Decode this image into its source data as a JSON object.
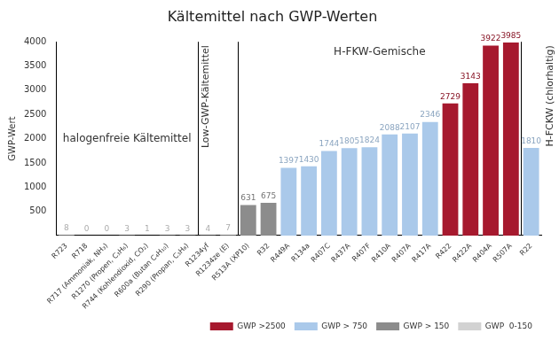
{
  "chart_data": {
    "type": "bar",
    "title": "Kältemittel nach GWP-Werten",
    "y_label": "GWP-Wert",
    "categories": [
      "R723",
      "R718",
      "R717 (Ammoniak, NH₃)",
      "R1270 (Propen, C₃H₆)",
      "R744 (Kohlendioxid, CO₂)",
      "R600a (Butan C₄H₁₀)",
      "R290 (Propan, C₃H₈)",
      "R1234yf",
      "R1234ze (E)",
      "R513A (XP10)",
      "R32",
      "R449A",
      "R134a",
      "R407C",
      "R437A",
      "R407F",
      "R410A",
      "R407A",
      "R417A",
      "R422",
      "R422A",
      "R404A",
      "R507A",
      "R22"
    ],
    "series": [
      {
        "name": "GWP >2500",
        "color": "#a6192e",
        "values": [
          null,
          null,
          null,
          null,
          null,
          null,
          null,
          null,
          null,
          null,
          null,
          null,
          null,
          null,
          null,
          null,
          null,
          null,
          null,
          2729,
          3143,
          3922,
          3985,
          null
        ]
      },
      {
        "name": "GWP > 750",
        "color": "#aac9ea",
        "values": [
          null,
          null,
          null,
          null,
          null,
          null,
          null,
          null,
          null,
          null,
          null,
          1397,
          1430,
          1744,
          1805,
          1824,
          2088,
          2107,
          2346,
          null,
          null,
          null,
          null,
          1810
        ]
      },
      {
        "name": "GWP > 150",
        "color": "#8c8c8c",
        "values": [
          null,
          null,
          null,
          null,
          null,
          null,
          null,
          null,
          null,
          631,
          675,
          null,
          null,
          null,
          null,
          null,
          null,
          null,
          null,
          null,
          null,
          null,
          null,
          null
        ]
      },
      {
        "name": "GWP  0-150",
        "color": "#d2d2d2",
        "values": [
          8,
          0,
          0,
          3,
          1,
          3,
          3,
          4,
          7,
          null,
          null,
          null,
          null,
          null,
          null,
          null,
          null,
          null,
          null,
          null,
          null,
          null,
          null,
          null
        ]
      }
    ],
    "ylim": [
      0,
      4000
    ],
    "yticks": [
      500,
      1000,
      1500,
      2000,
      2500,
      3000,
      3500,
      4000
    ],
    "grid": false,
    "legend": "bottom",
    "data_labels": true,
    "sections": [
      {
        "label": "halogenfreie Kältemittel",
        "from": "R723",
        "to": "R290 (Propan, C₃H₈)"
      },
      {
        "label": "Low-GWP-Kältemittel",
        "from": "R1234yf",
        "to": "R1234ze (E)"
      },
      {
        "label": "H-FKW-Gemische",
        "from": "R513A (XP10)",
        "to": "R507A"
      },
      {
        "label": "H-FCKW (chlorhaltig)",
        "from": "R22",
        "to": "R22"
      }
    ]
  }
}
